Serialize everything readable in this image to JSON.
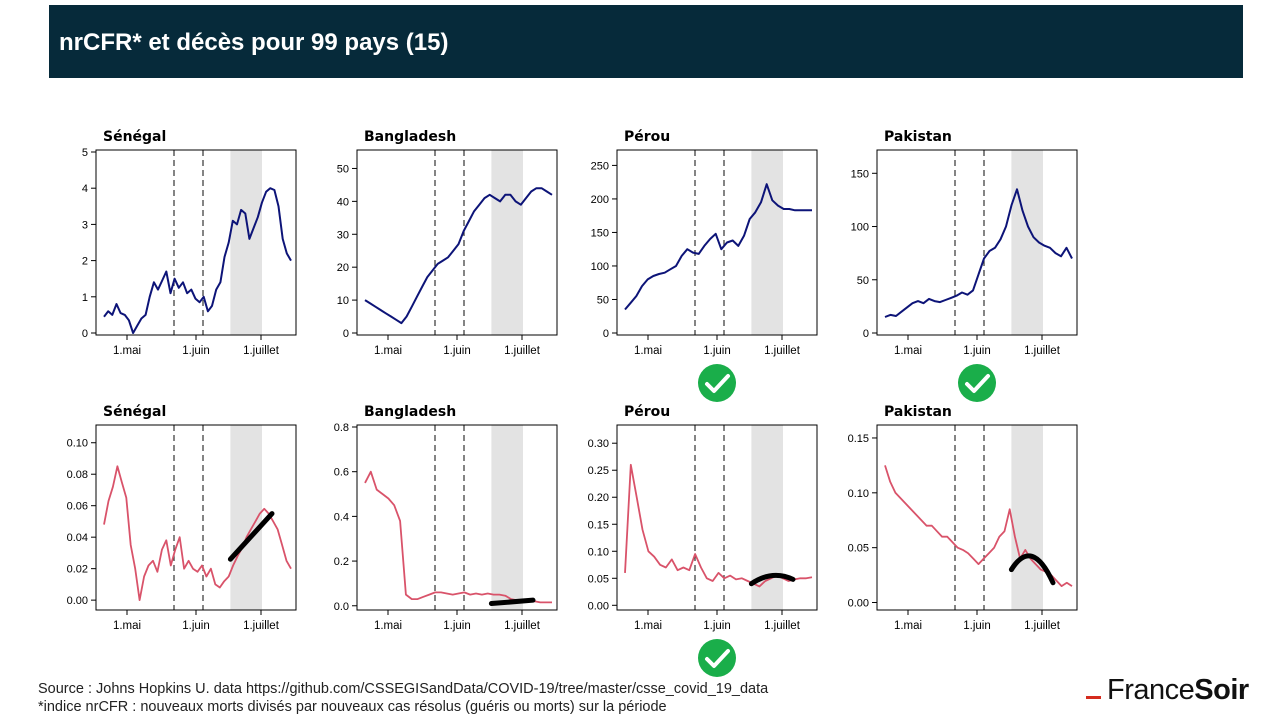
{
  "header": {
    "title": "nrCFR* et décès pour 99 pays (15)"
  },
  "footer": {
    "source": "Source : Johns Hopkins U. data https://github.com/CSSEGISandData/COVID-19/tree/master/csse_covid_19_data",
    "note": "*indice nrCFR : nouveaux morts divisés par nouveaux cas résolus (guéris ou morts) sur la période"
  },
  "brand": {
    "part1": "France",
    "part2": "Soir"
  },
  "colors": {
    "header_bg": "#062a3a",
    "deaths_line": "#0d1478",
    "nrcfr_line": "#d9536a",
    "shade": "#e3e3e3",
    "check": "#1aae4a",
    "brand_red": "#d52b1e"
  },
  "chart_data": [
    {
      "type": "line",
      "title": "Sénégal",
      "row": "deces",
      "ylim": [
        0,
        5
      ],
      "yticks": [
        "0",
        "1",
        "2",
        "3",
        "4",
        "5"
      ],
      "xticks": [
        "1.mai",
        "1.juin",
        "1.juillet"
      ],
      "series": [
        {
          "values": [
            0.45,
            0.6,
            0.5,
            0.8,
            0.55,
            0.5,
            0.35,
            0,
            0.2,
            0.4,
            0.5,
            1.0,
            1.4,
            1.2,
            1.45,
            1.7,
            1.1,
            1.5,
            1.25,
            1.4,
            1.1,
            1.2,
            0.95,
            0.85,
            1.0,
            0.6,
            0.75,
            1.2,
            1.4,
            2.1,
            2.5,
            3.1,
            3.0,
            3.4,
            3.3,
            2.6,
            2.9,
            3.2,
            3.6,
            3.9,
            4.0,
            3.95,
            3.5,
            2.6,
            2.2,
            2.0
          ]
        }
      ],
      "checkmark": false
    },
    {
      "type": "line",
      "title": "Bangladesh",
      "row": "deces",
      "ylim": [
        0,
        55
      ],
      "yticks": [
        "0",
        "10",
        "20",
        "30",
        "40",
        "50"
      ],
      "xticks": [
        "1.mai",
        "1.juin",
        "1.juillet"
      ],
      "series": [
        {
          "values": [
            10,
            9,
            8,
            7,
            6,
            5,
            4,
            3,
            5,
            8,
            11,
            14,
            17,
            19,
            21,
            22,
            23,
            25,
            27,
            31,
            34,
            37,
            39,
            41,
            42,
            41,
            40,
            42,
            42,
            40,
            39,
            41,
            43,
            44,
            44,
            43,
            42
          ]
        }
      ],
      "checkmark": false
    },
    {
      "type": "line",
      "title": "Pérou",
      "row": "deces",
      "ylim": [
        0,
        270
      ],
      "yticks": [
        "0",
        "50",
        "100",
        "150",
        "200",
        "250"
      ],
      "xticks": [
        "1.mai",
        "1.juin",
        "1.juillet"
      ],
      "series": [
        {
          "values": [
            35,
            45,
            55,
            70,
            80,
            85,
            88,
            90,
            95,
            100,
            115,
            125,
            120,
            118,
            130,
            140,
            148,
            125,
            135,
            138,
            130,
            145,
            170,
            180,
            195,
            222,
            198,
            190,
            185,
            185,
            183,
            183,
            183,
            183
          ]
        }
      ],
      "checkmark": true
    },
    {
      "type": "line",
      "title": "Pakistan",
      "row": "deces",
      "ylim": [
        0,
        170
      ],
      "yticks": [
        "0",
        "50",
        "100",
        "150"
      ],
      "xticks": [
        "1.mai",
        "1.juin",
        "1.juillet"
      ],
      "series": [
        {
          "values": [
            15,
            17,
            16,
            20,
            24,
            28,
            30,
            28,
            32,
            30,
            29,
            31,
            33,
            35,
            38,
            36,
            40,
            55,
            70,
            77,
            80,
            88,
            100,
            120,
            135,
            115,
            100,
            90,
            85,
            82,
            80,
            75,
            72,
            80,
            70
          ]
        }
      ],
      "checkmark": true
    },
    {
      "type": "line",
      "title": "Sénégal",
      "row": "nrcfr",
      "ylim": [
        -0.005,
        0.11
      ],
      "yticks": [
        "0.00",
        "0.02",
        "0.04",
        "0.06",
        "0.08",
        "0.10"
      ],
      "xticks": [
        "1.mai",
        "1.juin",
        "1.juillet"
      ],
      "series": [
        {
          "values": [
            0.048,
            0.063,
            0.072,
            0.085,
            0.075,
            0.065,
            0.035,
            0.02,
            0.0,
            0.015,
            0.022,
            0.025,
            0.018,
            0.032,
            0.038,
            0.022,
            0.032,
            0.04,
            0.02,
            0.025,
            0.02,
            0.018,
            0.022,
            0.015,
            0.02,
            0.01,
            0.008,
            0.012,
            0.015,
            0.022,
            0.028,
            0.033,
            0.04,
            0.045,
            0.05,
            0.055,
            0.058,
            0.055,
            0.05,
            0.045,
            0.035,
            0.025,
            0.02
          ]
        }
      ],
      "fit": {
        "from": 0.672,
        "to": 0.88,
        "values": [
          0.026,
          0.055
        ]
      },
      "checkmark": false
    },
    {
      "type": "line",
      "title": "Bangladesh",
      "row": "nrcfr",
      "ylim": [
        -0.01,
        0.8
      ],
      "yticks": [
        "0.0",
        "0.2",
        "0.4",
        "0.6",
        "0.8"
      ],
      "xticks": [
        "1.mai",
        "1.juin",
        "1.juillet"
      ],
      "series": [
        {
          "values": [
            0.55,
            0.6,
            0.52,
            0.5,
            0.48,
            0.45,
            0.38,
            0.05,
            0.03,
            0.03,
            0.04,
            0.05,
            0.06,
            0.06,
            0.055,
            0.05,
            0.055,
            0.06,
            0.05,
            0.055,
            0.05,
            0.055,
            0.05,
            0.05,
            0.045,
            0.03,
            0.025,
            0.025,
            0.02,
            0.02,
            0.015,
            0.015,
            0.015
          ]
        }
      ],
      "fit": {
        "from": 0.672,
        "to": 0.88,
        "values": [
          0.01,
          0.025
        ]
      },
      "checkmark": false
    },
    {
      "type": "line",
      "title": "Pérou",
      "row": "nrcfr",
      "ylim": [
        -0.005,
        0.33
      ],
      "yticks": [
        "0.00",
        "0.05",
        "0.10",
        "0.15",
        "0.20",
        "0.25",
        "0.30"
      ],
      "xticks": [
        "1.mai",
        "1.juin",
        "1.juillet"
      ],
      "series": [
        {
          "values": [
            0.06,
            0.26,
            0.2,
            0.14,
            0.1,
            0.09,
            0.075,
            0.07,
            0.085,
            0.065,
            0.07,
            0.065,
            0.095,
            0.07,
            0.05,
            0.045,
            0.06,
            0.05,
            0.055,
            0.048,
            0.05,
            0.045,
            0.04,
            0.035,
            0.045,
            0.05,
            0.055,
            0.05,
            0.045,
            0.048,
            0.05,
            0.05,
            0.052
          ]
        }
      ],
      "fit": {
        "from": 0.672,
        "to": 0.88,
        "values": [
          0.04,
          0.055,
          0.048
        ]
      },
      "checkmark": true
    },
    {
      "type": "line",
      "title": "Pakistan",
      "row": "nrcfr",
      "ylim": [
        -0.005,
        0.16
      ],
      "yticks": [
        "0.00",
        "0.05",
        "0.10",
        "0.15"
      ],
      "xticks": [
        "1.mai",
        "1.juin",
        "1.juillet"
      ],
      "series": [
        {
          "values": [
            0.125,
            0.11,
            0.1,
            0.095,
            0.09,
            0.085,
            0.08,
            0.075,
            0.07,
            0.07,
            0.065,
            0.06,
            0.06,
            0.055,
            0.05,
            0.048,
            0.045,
            0.04,
            0.035,
            0.04,
            0.045,
            0.05,
            0.06,
            0.065,
            0.085,
            0.06,
            0.04,
            0.048,
            0.04,
            0.035,
            0.03,
            0.028,
            0.025,
            0.02,
            0.015,
            0.018,
            0.015
          ]
        }
      ],
      "fit": {
        "from": 0.672,
        "to": 0.88,
        "values": [
          0.03,
          0.042,
          0.018
        ]
      },
      "checkmark": false
    }
  ]
}
